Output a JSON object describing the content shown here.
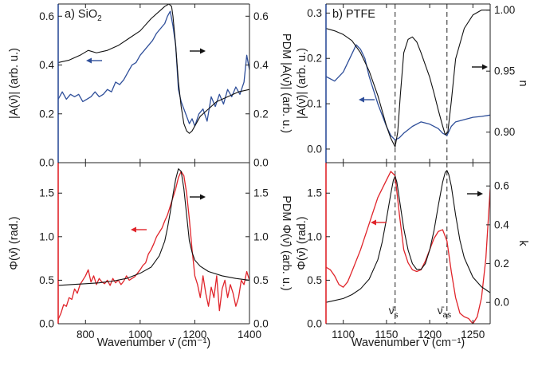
{
  "colors": {
    "black": "#111111",
    "blue": "#2f4f9a",
    "red": "#e0242a",
    "frame": "#222222"
  },
  "chart_data": [
    {
      "id": "a_top",
      "type": "line",
      "panel_label": "a) SiO",
      "panel_label_sub": "2",
      "xlim": [
        700,
        1400
      ],
      "left_axis": {
        "label": "|A(ν̄)| (arb. u.)",
        "ylim": [
          0.0,
          0.65
        ],
        "ticks": [
          "0.0",
          "0.2",
          "0.4",
          "0.6"
        ],
        "tick_values": [
          0,
          0.2,
          0.4,
          0.6
        ],
        "color": "blue"
      },
      "right_axis": {
        "label": "PDM |A(ν̄)| (arb. u.)",
        "ylim": [
          0.0,
          0.65
        ],
        "ticks": [
          "0.0",
          "0.2",
          "0.4",
          "0.6"
        ],
        "tick_values": [
          0,
          0.2,
          0.4,
          0.6
        ],
        "color": "black"
      },
      "series": [
        {
          "axis": "left",
          "color": "blue",
          "x": [
            700,
            715,
            730,
            745,
            760,
            775,
            790,
            805,
            820,
            835,
            850,
            865,
            880,
            895,
            910,
            925,
            940,
            955,
            970,
            985,
            1000,
            1015,
            1030,
            1045,
            1060,
            1075,
            1090,
            1100,
            1110,
            1120,
            1130,
            1140,
            1150,
            1160,
            1170,
            1180,
            1190,
            1200,
            1215,
            1230,
            1245,
            1260,
            1275,
            1290,
            1305,
            1320,
            1335,
            1350,
            1365,
            1380,
            1390,
            1400
          ],
          "values": [
            0.26,
            0.29,
            0.26,
            0.28,
            0.27,
            0.28,
            0.25,
            0.26,
            0.27,
            0.29,
            0.27,
            0.28,
            0.3,
            0.29,
            0.33,
            0.32,
            0.34,
            0.37,
            0.4,
            0.41,
            0.44,
            0.46,
            0.48,
            0.5,
            0.53,
            0.55,
            0.57,
            0.6,
            0.62,
            0.56,
            0.48,
            0.3,
            0.25,
            0.22,
            0.19,
            0.16,
            0.18,
            0.15,
            0.2,
            0.22,
            0.17,
            0.27,
            0.23,
            0.28,
            0.24,
            0.3,
            0.27,
            0.31,
            0.28,
            0.33,
            0.44,
            0.38
          ]
        },
        {
          "axis": "right",
          "color": "black",
          "x": [
            700,
            740,
            780,
            810,
            840,
            880,
            920,
            960,
            1000,
            1040,
            1070,
            1090,
            1105,
            1115,
            1120,
            1130,
            1140,
            1150,
            1160,
            1170,
            1180,
            1190,
            1200,
            1220,
            1250,
            1280,
            1320,
            1360,
            1400
          ],
          "values": [
            0.41,
            0.42,
            0.44,
            0.46,
            0.45,
            0.46,
            0.48,
            0.51,
            0.54,
            0.59,
            0.62,
            0.64,
            0.65,
            0.64,
            0.6,
            0.48,
            0.33,
            0.23,
            0.16,
            0.13,
            0.12,
            0.13,
            0.15,
            0.19,
            0.22,
            0.25,
            0.27,
            0.29,
            0.3
          ]
        }
      ],
      "arrows": [
        {
          "direction": "left",
          "color": "blue"
        },
        {
          "direction": "right",
          "color": "black"
        }
      ]
    },
    {
      "id": "a_bottom",
      "type": "line",
      "xlim": [
        700,
        1400
      ],
      "xticks": [
        800,
        1000,
        1200,
        1400
      ],
      "xlabel": "Wavenumber ν̄ (cm⁻¹)",
      "left_axis": {
        "label": "Φ(ν̄) (rad.)",
        "ylim": [
          0.0,
          1.85
        ],
        "ticks": [
          "0.0",
          "0.5",
          "1.0",
          "1.5"
        ],
        "tick_values": [
          0,
          0.5,
          1.0,
          1.5
        ],
        "color": "red"
      },
      "right_axis": {
        "label": "PDM Φ(ν̄) (arb. u.)",
        "ylim": [
          0.0,
          1.85
        ],
        "ticks": [
          "0.0",
          "0.5",
          "1.0",
          "1.5"
        ],
        "tick_values": [
          0,
          0.5,
          1.0,
          1.5
        ],
        "color": "black"
      },
      "series": [
        {
          "axis": "left",
          "color": "red",
          "x": [
            700,
            710,
            720,
            730,
            740,
            750,
            760,
            770,
            780,
            790,
            800,
            810,
            820,
            830,
            840,
            850,
            860,
            870,
            880,
            890,
            900,
            910,
            920,
            930,
            940,
            950,
            960,
            970,
            980,
            990,
            1000,
            1010,
            1020,
            1030,
            1040,
            1050,
            1060,
            1070,
            1080,
            1090,
            1100,
            1110,
            1120,
            1130,
            1140,
            1150,
            1160,
            1170,
            1180,
            1190,
            1200,
            1210,
            1220,
            1230,
            1240,
            1250,
            1260,
            1270,
            1280,
            1290,
            1300,
            1310,
            1320,
            1330,
            1340,
            1350,
            1360,
            1370,
            1380,
            1390,
            1400
          ],
          "values": [
            0.05,
            0.12,
            0.22,
            0.2,
            0.3,
            0.28,
            0.4,
            0.35,
            0.45,
            0.5,
            0.55,
            0.62,
            0.48,
            0.55,
            0.45,
            0.52,
            0.48,
            0.46,
            0.5,
            0.44,
            0.52,
            0.47,
            0.5,
            0.45,
            0.49,
            0.55,
            0.5,
            0.52,
            0.54,
            0.58,
            0.62,
            0.67,
            0.7,
            0.8,
            0.85,
            0.92,
            1.0,
            1.05,
            1.1,
            1.18,
            1.25,
            1.35,
            1.45,
            1.55,
            1.68,
            1.75,
            1.7,
            1.5,
            1.2,
            0.85,
            0.55,
            0.45,
            0.3,
            0.55,
            0.35,
            0.2,
            0.42,
            0.3,
            0.55,
            0.15,
            0.4,
            0.5,
            0.3,
            0.45,
            0.35,
            0.2,
            0.3,
            0.5,
            0.45,
            0.6,
            0.5
          ]
        },
        {
          "axis": "right",
          "color": "black",
          "x": [
            700,
            750,
            800,
            850,
            900,
            950,
            1000,
            1040,
            1070,
            1090,
            1100,
            1110,
            1120,
            1130,
            1140,
            1150,
            1160,
            1170,
            1180,
            1190,
            1200,
            1220,
            1250,
            1300,
            1350,
            1400
          ],
          "values": [
            0.44,
            0.45,
            0.46,
            0.47,
            0.49,
            0.52,
            0.58,
            0.65,
            0.78,
            0.95,
            1.1,
            1.28,
            1.48,
            1.66,
            1.78,
            1.75,
            1.55,
            1.25,
            0.95,
            0.82,
            0.73,
            0.66,
            0.6,
            0.55,
            0.52,
            0.5
          ]
        }
      ],
      "arrows": [
        {
          "direction": "left",
          "color": "red"
        },
        {
          "direction": "right",
          "color": "black"
        }
      ]
    },
    {
      "id": "b_top",
      "type": "line",
      "panel_label": "b) PTFE",
      "xlim": [
        1080,
        1270
      ],
      "vlines": [
        1160,
        1220
      ],
      "left_axis": {
        "label": "|A(ν̄)| (arb. u.)",
        "ylim": [
          -0.03,
          0.32
        ],
        "ticks": [
          "0.0",
          "0.1",
          "0.2",
          "0.3"
        ],
        "tick_values": [
          0,
          0.1,
          0.2,
          0.3
        ],
        "color": "blue"
      },
      "right_axis": {
        "label": "n",
        "ylim": [
          0.875,
          1.005
        ],
        "ticks": [
          "0.90",
          "0.95",
          "1.00"
        ],
        "tick_values": [
          0.9,
          0.95,
          1.0
        ],
        "color": "black"
      },
      "series": [
        {
          "axis": "left",
          "color": "blue",
          "x": [
            1080,
            1090,
            1100,
            1110,
            1115,
            1120,
            1125,
            1130,
            1140,
            1150,
            1155,
            1160,
            1165,
            1170,
            1180,
            1190,
            1200,
            1210,
            1215,
            1220,
            1225,
            1230,
            1240,
            1250,
            1260,
            1270
          ],
          "values": [
            0.16,
            0.15,
            0.17,
            0.21,
            0.23,
            0.22,
            0.2,
            0.16,
            0.1,
            0.05,
            0.03,
            0.02,
            0.025,
            0.035,
            0.05,
            0.06,
            0.055,
            0.045,
            0.035,
            0.03,
            0.05,
            0.06,
            0.065,
            0.07,
            0.072,
            0.075
          ]
        },
        {
          "axis": "right",
          "color": "black",
          "x": [
            1080,
            1090,
            1100,
            1110,
            1120,
            1130,
            1140,
            1150,
            1155,
            1160,
            1163,
            1166,
            1170,
            1175,
            1180,
            1185,
            1190,
            1195,
            1200,
            1205,
            1210,
            1215,
            1218,
            1221,
            1225,
            1230,
            1240,
            1250,
            1260,
            1270
          ],
          "values": [
            0.985,
            0.983,
            0.98,
            0.975,
            0.965,
            0.95,
            0.93,
            0.905,
            0.895,
            0.888,
            0.9,
            0.93,
            0.965,
            0.976,
            0.978,
            0.974,
            0.965,
            0.955,
            0.945,
            0.932,
            0.918,
            0.905,
            0.898,
            0.9,
            0.925,
            0.96,
            0.985,
            0.996,
            1.0,
            1.0
          ]
        }
      ],
      "arrows": [
        {
          "direction": "left",
          "color": "blue"
        },
        {
          "direction": "right",
          "color": "black"
        }
      ]
    },
    {
      "id": "b_bottom",
      "type": "line",
      "xlim": [
        1080,
        1270
      ],
      "xticks": [
        1100,
        1150,
        1200,
        1250
      ],
      "xlabel": "Wavenumber ν̄ (cm⁻¹)",
      "vlines": [
        1160,
        1220
      ],
      "vline_labels": [
        {
          "text": "ν̄",
          "sub": "s"
        },
        {
          "text": "ν̄",
          "sub": "as"
        }
      ],
      "left_axis": {
        "label": "Φ(ν̄) (rad.)",
        "ylim": [
          0.0,
          1.85
        ],
        "ticks": [
          "0.0",
          "0.5",
          "1.0",
          "1.5"
        ],
        "tick_values": [
          0,
          0.5,
          1.0,
          1.5
        ],
        "color": "red"
      },
      "right_axis": {
        "label": "k",
        "ylim": [
          -0.11,
          0.72
        ],
        "ticks": [
          "0.0",
          "0.2",
          "0.4",
          "0.6"
        ],
        "tick_values": [
          0,
          0.2,
          0.4,
          0.6
        ],
        "color": "black"
      },
      "series": [
        {
          "axis": "left",
          "color": "red",
          "x": [
            1080,
            1085,
            1090,
            1095,
            1100,
            1105,
            1110,
            1120,
            1130,
            1140,
            1150,
            1155,
            1160,
            1165,
            1170,
            1175,
            1180,
            1185,
            1190,
            1195,
            1200,
            1205,
            1210,
            1215,
            1220,
            1225,
            1230,
            1235,
            1240,
            1245,
            1250,
            1255,
            1260,
            1265,
            1270
          ],
          "values": [
            0.65,
            0.62,
            0.55,
            0.45,
            0.42,
            0.48,
            0.6,
            0.85,
            1.15,
            1.45,
            1.65,
            1.75,
            1.7,
            1.25,
            0.85,
            0.7,
            0.62,
            0.6,
            0.62,
            0.72,
            0.85,
            0.98,
            1.06,
            1.08,
            0.95,
            0.6,
            0.3,
            0.12,
            0.08,
            0.06,
            0.0,
            0.08,
            0.3,
            0.75,
            1.55
          ]
        },
        {
          "axis": "right",
          "color": "black",
          "x": [
            1080,
            1090,
            1100,
            1110,
            1120,
            1130,
            1140,
            1145,
            1150,
            1155,
            1158,
            1160,
            1162,
            1165,
            1170,
            1175,
            1180,
            1185,
            1190,
            1195,
            1200,
            1205,
            1210,
            1215,
            1218,
            1220,
            1222,
            1225,
            1230,
            1235,
            1240,
            1250,
            1260,
            1270
          ],
          "values": [
            0.0,
            0.01,
            0.02,
            0.04,
            0.07,
            0.12,
            0.22,
            0.31,
            0.43,
            0.56,
            0.63,
            0.65,
            0.62,
            0.53,
            0.38,
            0.27,
            0.2,
            0.17,
            0.17,
            0.2,
            0.27,
            0.37,
            0.5,
            0.62,
            0.67,
            0.68,
            0.66,
            0.6,
            0.45,
            0.32,
            0.23,
            0.13,
            0.08,
            0.05
          ]
        }
      ],
      "arrows": [
        {
          "direction": "left",
          "color": "red"
        },
        {
          "direction": "right",
          "color": "black"
        }
      ]
    }
  ]
}
